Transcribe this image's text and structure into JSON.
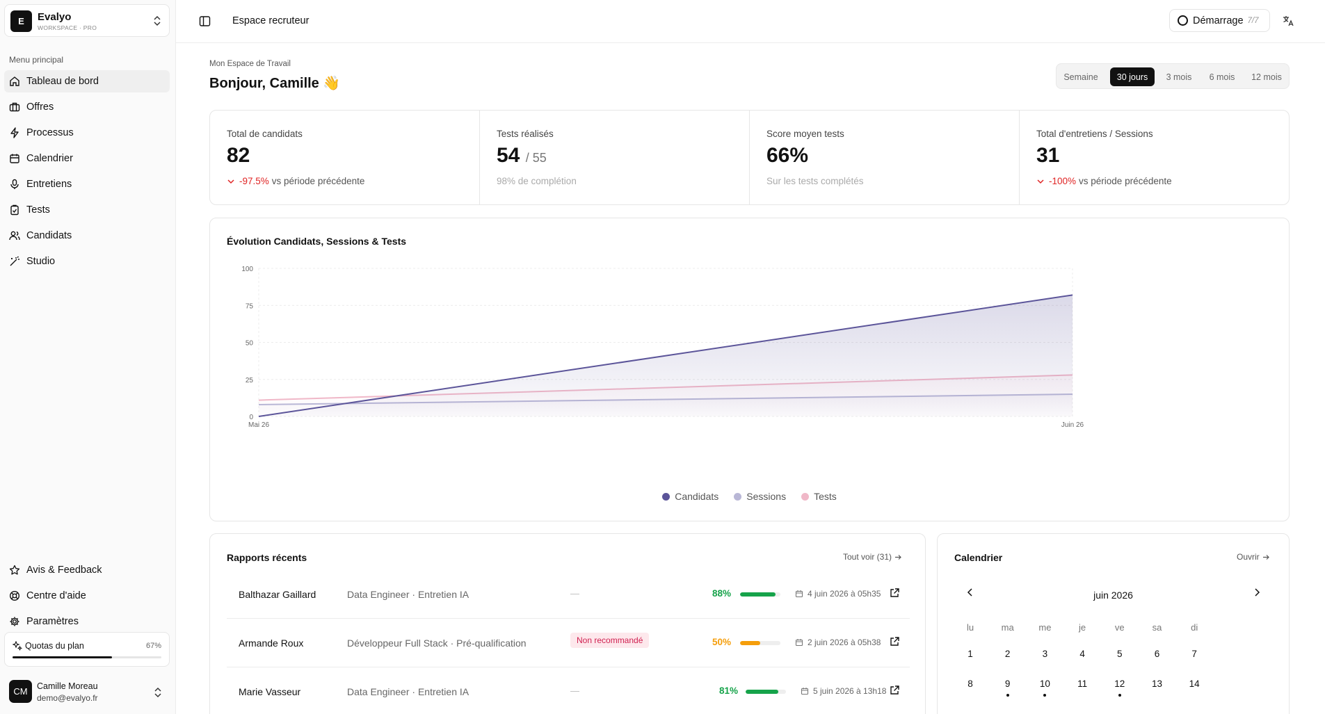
{
  "workspace": {
    "name": "Evalyo",
    "logo_letter": "E",
    "subtitle": "WORKSPACE · PRO"
  },
  "sidebar": {
    "section_title": "Menu principal",
    "items": [
      {
        "label": "Tableau de bord",
        "icon": "home-icon",
        "active": true
      },
      {
        "label": "Offres",
        "icon": "briefcase-icon"
      },
      {
        "label": "Processus",
        "icon": "zap-icon"
      },
      {
        "label": "Calendrier",
        "icon": "calendar-icon"
      },
      {
        "label": "Entretiens",
        "icon": "microphone-icon"
      },
      {
        "label": "Tests",
        "icon": "clipboard-check-icon"
      },
      {
        "label": "Candidats",
        "icon": "users-icon"
      },
      {
        "label": "Studio",
        "icon": "magic-wand-icon"
      }
    ],
    "bottom_items": [
      {
        "label": "Avis & Feedback",
        "icon": "star-icon"
      },
      {
        "label": "Centre d'aide",
        "icon": "lifebuoy-icon"
      },
      {
        "label": "Paramètres",
        "icon": "gear-icon"
      }
    ],
    "quota": {
      "label": "Quotas du plan",
      "percent_label": "67%",
      "value": 0.67
    },
    "user": {
      "initials": "CM",
      "name": "Camille Moreau",
      "email": "demo@evalyo.fr"
    }
  },
  "topbar": {
    "title": "Espace recruteur",
    "demarrage_label": "Démarrage",
    "demarrage_count": "7/7"
  },
  "header": {
    "breadcrumb": "Mon Espace de Travail",
    "greeting": "Bonjour, Camille 👋"
  },
  "range": {
    "options": [
      "Semaine",
      "30 jours",
      "3 mois",
      "6 mois",
      "12 mois"
    ],
    "active": "30 jours"
  },
  "stats": [
    {
      "label": "Total de candidats",
      "value": "82",
      "delta": "-97.5%",
      "foot": "vs période précédente"
    },
    {
      "label": "Tests réalisés",
      "value": "54",
      "value_sub": "/ 55",
      "foot": "98% de complétion"
    },
    {
      "label": "Score moyen tests",
      "value": "66%",
      "foot": "Sur les tests complétés"
    },
    {
      "label": "Total d'entretiens / Sessions",
      "value": "31",
      "delta": "-100%",
      "foot": "vs période précédente"
    }
  ],
  "chart_data": {
    "type": "area",
    "title": "Évolution Candidats, Sessions & Tests",
    "x": [
      "Mai 26",
      "Juin 26"
    ],
    "ylim": [
      0,
      100
    ],
    "yticks": [
      "0",
      "25",
      "50",
      "75",
      "100"
    ],
    "series": [
      {
        "name": "Candidats",
        "values": [
          0,
          82
        ],
        "color": "#5b5499"
      },
      {
        "name": "Sessions",
        "values": [
          8,
          15
        ],
        "color": "#b9b7d6"
      },
      {
        "name": "Tests",
        "values": [
          11,
          28
        ],
        "color": "#f0b8c8"
      }
    ],
    "grid": true,
    "legend": "bottom"
  },
  "reports": {
    "title": "Rapports récents",
    "link": "Tout voir (31)",
    "rows": [
      {
        "name": "Balthazar Gaillard",
        "role": "Data Engineer · Entretien IA",
        "status": "—",
        "score_label": "88%",
        "score": 0.88,
        "score_color": "#16a34a",
        "date": "4 juin 2026 à 05h35"
      },
      {
        "name": "Armande Roux",
        "role": "Développeur Full Stack · Pré-qualification",
        "status": "Non recommandé",
        "score_label": "50%",
        "score": 0.5,
        "score_color": "#f59e0b",
        "date": "2 juin 2026 à 05h38"
      },
      {
        "name": "Marie Vasseur",
        "role": "Data Engineer · Entretien IA",
        "status": "—",
        "score_label": "81%",
        "score": 0.81,
        "score_color": "#16a34a",
        "date": "5 juin 2026 à 13h18"
      }
    ]
  },
  "calendar": {
    "title": "Calendrier",
    "link": "Ouvrir",
    "month": "juin 2026",
    "weekdays": [
      "lu",
      "ma",
      "me",
      "je",
      "ve",
      "sa",
      "di"
    ],
    "weeks": [
      [
        "1",
        "2",
        "3",
        "4",
        "5",
        "6",
        "7"
      ],
      [
        "8",
        "9",
        "10",
        "11",
        "12",
        "13",
        "14"
      ]
    ],
    "event_days": [
      "9",
      "10",
      "12"
    ]
  }
}
